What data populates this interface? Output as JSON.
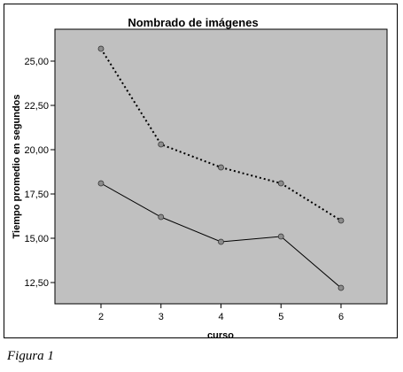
{
  "caption": "Figura 1",
  "chart_data": {
    "type": "line",
    "title": "Nombrado de imágenes",
    "xlabel": "curso",
    "ylabel": "Tiempo promedio en segundos",
    "categories": [
      "2",
      "3",
      "4",
      "5",
      "6"
    ],
    "yticks": [
      {
        "value": 12.5,
        "label": "12,50"
      },
      {
        "value": 15.0,
        "label": "15,00"
      },
      {
        "value": 17.5,
        "label": "17,50"
      },
      {
        "value": 20.0,
        "label": "20,00"
      },
      {
        "value": 22.5,
        "label": "22,50"
      },
      {
        "value": 25.0,
        "label": "25,00"
      }
    ],
    "ylim": [
      11.3,
      26.8
    ],
    "grid": false,
    "colors": {
      "plot_background": "#c0c0c0",
      "line": "#000000",
      "marker_fill": "#8c8c8c"
    },
    "series": [
      {
        "style": "dotted",
        "values": [
          25.7,
          20.3,
          19.0,
          18.1,
          16.0
        ]
      },
      {
        "style": "solid",
        "values": [
          18.1,
          16.2,
          14.8,
          15.1,
          12.2
        ]
      }
    ]
  }
}
